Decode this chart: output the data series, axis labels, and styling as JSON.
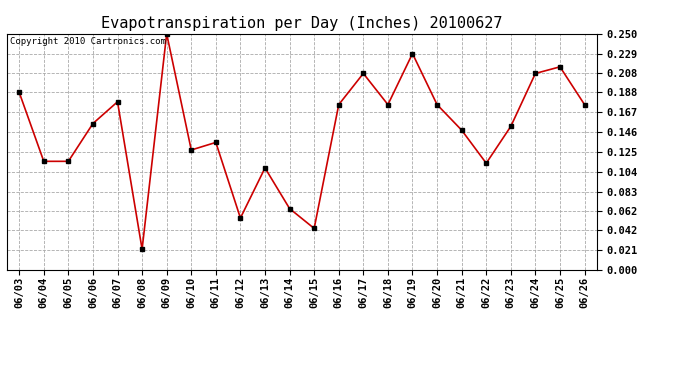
{
  "title": "Evapotranspiration per Day (Inches) 20100627",
  "copyright_text": "Copyright 2010 Cartronics.com",
  "dates": [
    "06/03",
    "06/04",
    "06/05",
    "06/06",
    "06/07",
    "06/08",
    "06/09",
    "06/10",
    "06/11",
    "06/12",
    "06/13",
    "06/14",
    "06/15",
    "06/16",
    "06/17",
    "06/18",
    "06/19",
    "06/20",
    "06/21",
    "06/22",
    "06/23",
    "06/24",
    "06/25",
    "06/26"
  ],
  "values": [
    0.188,
    0.115,
    0.115,
    0.155,
    0.178,
    0.022,
    0.25,
    0.127,
    0.135,
    0.055,
    0.108,
    0.065,
    0.044,
    0.175,
    0.208,
    0.175,
    0.229,
    0.175,
    0.148,
    0.113,
    0.152,
    0.208,
    0.215,
    0.175
  ],
  "line_color": "#cc0000",
  "marker": "s",
  "marker_size": 3,
  "marker_color": "#000000",
  "background_color": "#ffffff",
  "grid_color": "#aaaaaa",
  "ylim": [
    0.0,
    0.25
  ],
  "yticks": [
    0.0,
    0.021,
    0.042,
    0.062,
    0.083,
    0.104,
    0.125,
    0.146,
    0.167,
    0.188,
    0.208,
    0.229,
    0.25
  ],
  "title_fontsize": 11,
  "copyright_fontsize": 6.5,
  "tick_fontsize": 7.5,
  "tick_fontweight": "bold"
}
